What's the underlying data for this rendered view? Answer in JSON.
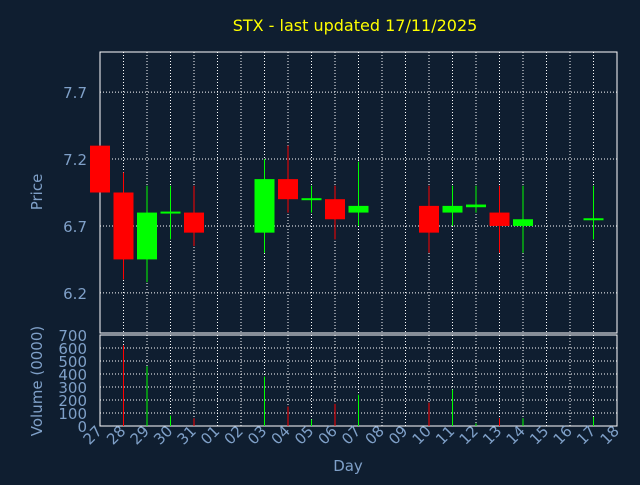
{
  "chart_data": {
    "type": "candlestick",
    "title": "STX - last updated 17/11/2025",
    "xlabel": "Day",
    "ylabel_price": "Price",
    "ylabel_volume": "Volume (0000)",
    "x": [
      "27",
      "28",
      "29",
      "30",
      "31",
      "01",
      "02",
      "03",
      "04",
      "05",
      "06",
      "07",
      "08",
      "09",
      "10",
      "11",
      "12",
      "13",
      "14",
      "15",
      "16",
      "17",
      "18"
    ],
    "price_ylim": [
      5.9,
      8.0
    ],
    "price_ticks": [
      "6.2",
      "6.7",
      "7.2",
      "7.7"
    ],
    "volume_ylim": [
      0,
      700
    ],
    "volume_ticks": [
      "0",
      "100",
      "200",
      "300",
      "400",
      "500",
      "600",
      "700"
    ],
    "grid": true,
    "up_color": "#00ff00",
    "down_color": "#ff0000",
    "title_color": "#ffff00",
    "label_color": "#7fa0c8",
    "candles": [
      {
        "day": "27",
        "open": 7.3,
        "high": 7.3,
        "low": 6.95,
        "close": 6.95,
        "volume": 0
      },
      {
        "day": "28",
        "open": 6.95,
        "high": 7.1,
        "low": 6.3,
        "close": 6.45,
        "volume": 620
      },
      {
        "day": "29",
        "open": 6.45,
        "high": 7.0,
        "low": 6.28,
        "close": 6.8,
        "volume": 460
      },
      {
        "day": "30",
        "open": 6.8,
        "high": 7.0,
        "low": 6.6,
        "close": 6.8,
        "volume": 80
      },
      {
        "day": "31",
        "open": 6.8,
        "high": 7.0,
        "low": 6.55,
        "close": 6.65,
        "volume": 60
      },
      {
        "day": "03",
        "open": 6.65,
        "high": 7.2,
        "low": 6.5,
        "close": 7.05,
        "volume": 380
      },
      {
        "day": "04",
        "open": 7.05,
        "high": 7.3,
        "low": 6.8,
        "close": 6.9,
        "volume": 150
      },
      {
        "day": "05",
        "open": 6.9,
        "high": 7.0,
        "low": 6.8,
        "close": 6.9,
        "volume": 50
      },
      {
        "day": "06",
        "open": 6.9,
        "high": 7.0,
        "low": 6.6,
        "close": 6.75,
        "volume": 170
      },
      {
        "day": "07",
        "open": 6.8,
        "high": 7.18,
        "low": 6.7,
        "close": 6.85,
        "volume": 240
      },
      {
        "day": "10",
        "open": 6.85,
        "high": 7.0,
        "low": 6.5,
        "close": 6.65,
        "volume": 180
      },
      {
        "day": "11",
        "open": 6.8,
        "high": 7.0,
        "low": 6.7,
        "close": 6.85,
        "volume": 280
      },
      {
        "day": "12",
        "open": 6.84,
        "high": 7.0,
        "low": 6.8,
        "close": 6.86,
        "volume": 20
      },
      {
        "day": "13",
        "open": 6.8,
        "high": 7.0,
        "low": 6.5,
        "close": 6.7,
        "volume": 60
      },
      {
        "day": "14",
        "open": 6.7,
        "high": 7.0,
        "low": 6.5,
        "close": 6.75,
        "volume": 60
      },
      {
        "day": "17",
        "open": 6.75,
        "high": 7.0,
        "low": 6.6,
        "close": 6.75,
        "volume": 70
      }
    ]
  }
}
